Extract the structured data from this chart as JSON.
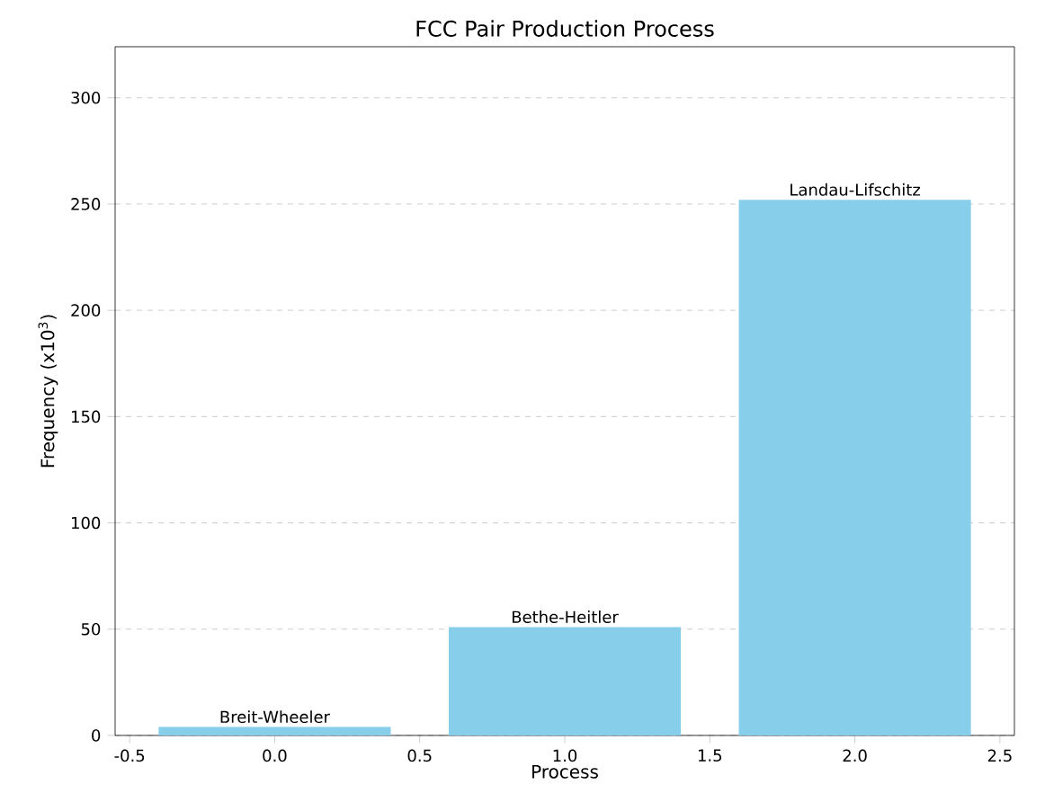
{
  "chart_data": {
    "type": "bar",
    "title": "FCC Pair Production Process",
    "xlabel": "Process",
    "ylabel": "Frequency (x10$^{3}$)",
    "x": [
      0,
      1,
      2
    ],
    "values": [
      4,
      51,
      252
    ],
    "color": "#87ceeb",
    "xlim": [
      -0.55,
      2.55
    ],
    "xticks": [
      -0.5,
      {
        "value": 0,
        "label": "0.0"
      },
      0.5,
      {
        "value": 1,
        "label": "1.0"
      },
      1.5,
      {
        "value": 2,
        "label": "2.0"
      },
      2.5
    ],
    "ylim": [
      0,
      324
    ],
    "yticks": [
      0,
      50,
      100,
      150,
      200,
      250,
      300
    ],
    "grid": "y",
    "annotations": [
      {
        "text": "Breit-Wheeler",
        "x": 0,
        "y": 4
      },
      {
        "text": "Bethe-Heitler",
        "x": 1,
        "y": 51
      },
      {
        "text": "Landau-Lifschitz",
        "x": 2,
        "y": 252
      }
    ]
  }
}
